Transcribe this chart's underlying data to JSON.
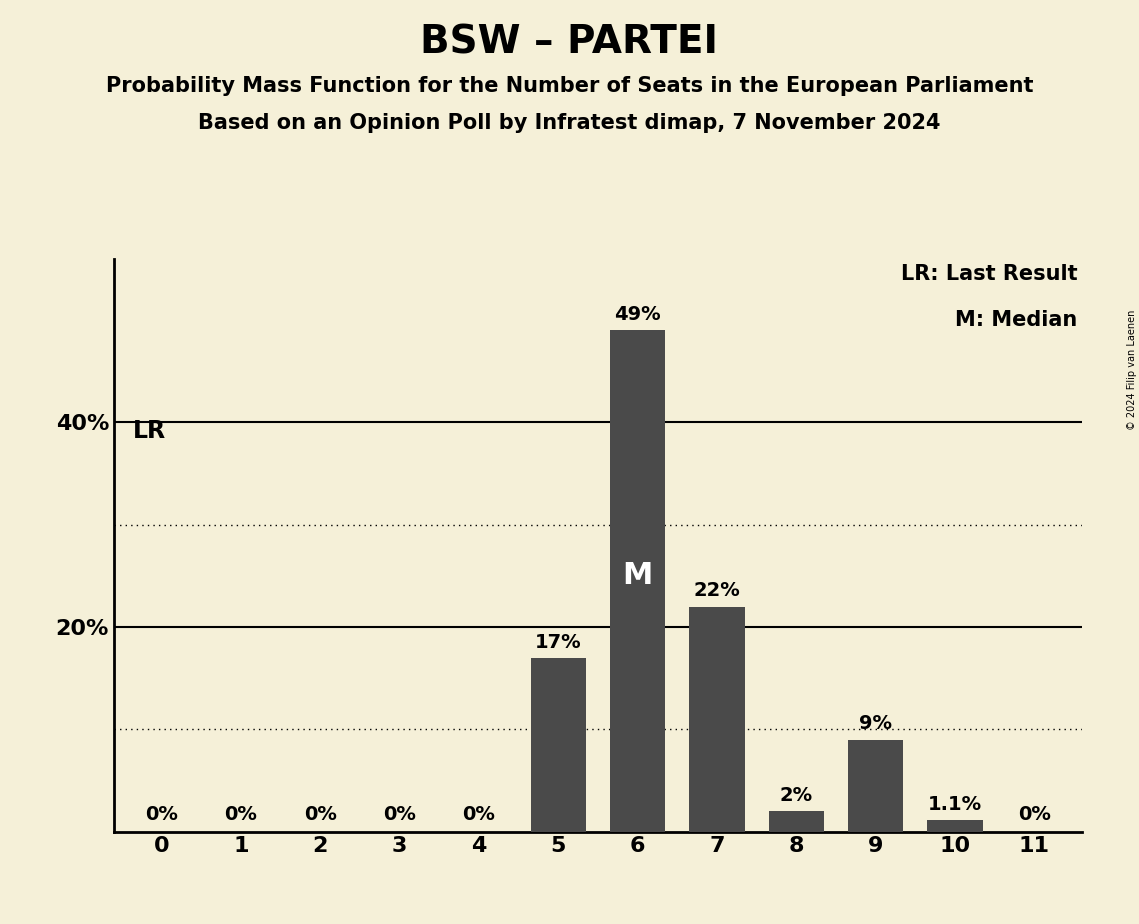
{
  "title": "BSW – PARTEI",
  "subtitle1": "Probability Mass Function for the Number of Seats in the European Parliament",
  "subtitle2": "Based on an Opinion Poll by Infratest dimap, 7 November 2024",
  "copyright": "© 2024 Filip van Laenen",
  "categories": [
    0,
    1,
    2,
    3,
    4,
    5,
    6,
    7,
    8,
    9,
    10,
    11
  ],
  "values": [
    0,
    0,
    0,
    0,
    0,
    17,
    49,
    22,
    2,
    9,
    1.1,
    0
  ],
  "bar_color": "#4a4a4a",
  "bg_color": "#f5f0d8",
  "label_texts": [
    "0%",
    "0%",
    "0%",
    "0%",
    "0%",
    "17%",
    "49%",
    "22%",
    "2%",
    "9%",
    "1.1%",
    "0%"
  ],
  "median_seat": 6,
  "median_label": "M",
  "lr_seat": 0,
  "lr_label": "LR",
  "solid_hlines": [
    20,
    40
  ],
  "dotted_hlines": [
    10,
    30
  ],
  "ylim": [
    0,
    56
  ],
  "legend_lr": "LR: Last Result",
  "legend_m": "M: Median",
  "title_fontsize": 28,
  "subtitle_fontsize": 15,
  "axis_tick_fontsize": 16,
  "bar_label_fontsize": 14,
  "legend_fontsize": 15,
  "lr_label_fontsize": 17,
  "median_label_fontsize": 22,
  "ytick_positions": [
    20,
    40
  ],
  "ytick_labels": [
    "20%",
    "40%"
  ]
}
